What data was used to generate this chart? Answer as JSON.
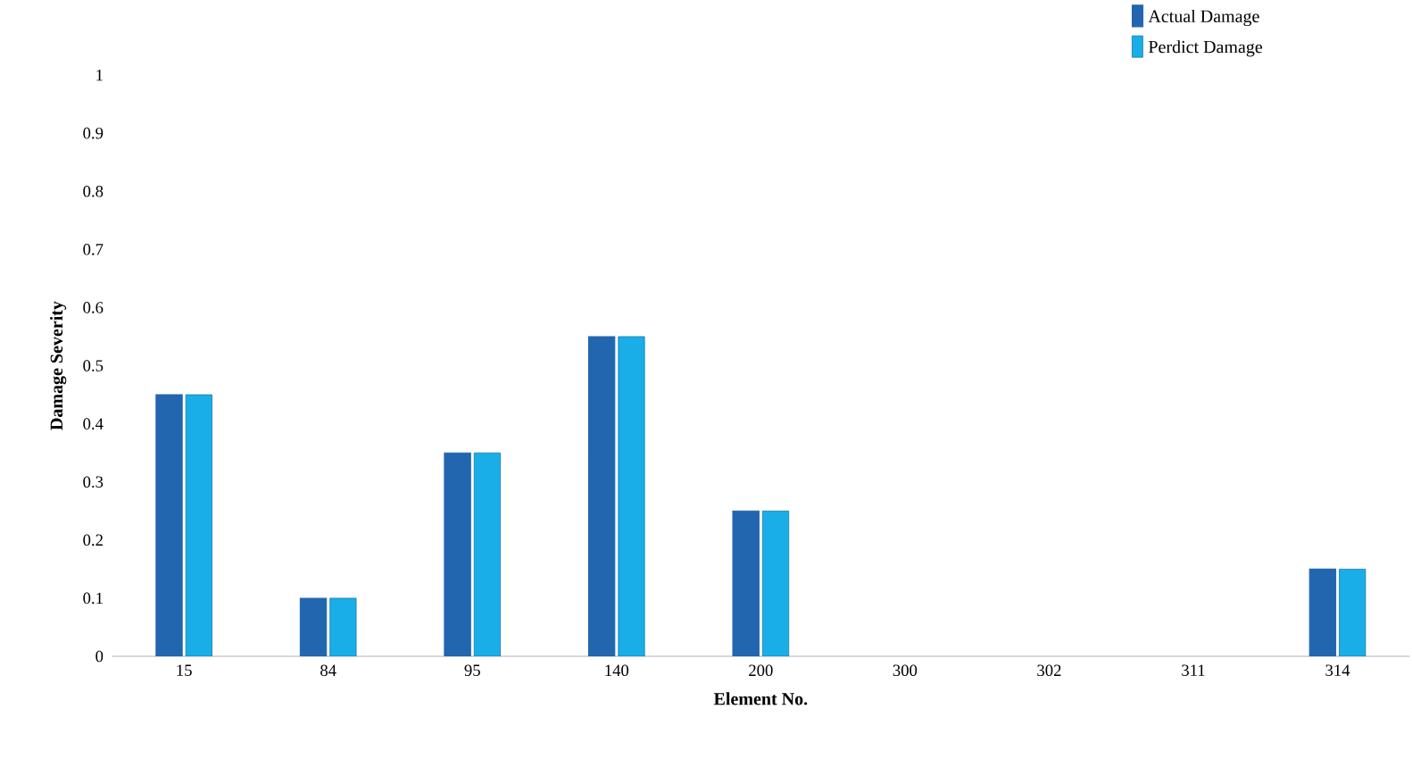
{
  "chart_data": {
    "type": "bar",
    "xlabel": "Element No.",
    "ylabel": "Damage Severity",
    "categories": [
      "15",
      "84",
      "95",
      "140",
      "200",
      "300",
      "302",
      "311",
      "314"
    ],
    "series": [
      {
        "name": "Actual Damage",
        "color": "#2266b0",
        "values": [
          0.45,
          0.1,
          0.35,
          0.55,
          0.25,
          0,
          0,
          0,
          0.15
        ]
      },
      {
        "name": "Perdict Damage",
        "color": "#1aaee8",
        "values": [
          0.45,
          0.1,
          0.35,
          0.55,
          0.25,
          0,
          0,
          0,
          0.15
        ]
      }
    ],
    "ylim": [
      0,
      1
    ],
    "yticks": [
      0,
      0.1,
      0.2,
      0.3,
      0.4,
      0.5,
      0.6,
      0.7,
      0.8,
      0.9,
      1
    ],
    "grid": false,
    "legend": "top right"
  }
}
